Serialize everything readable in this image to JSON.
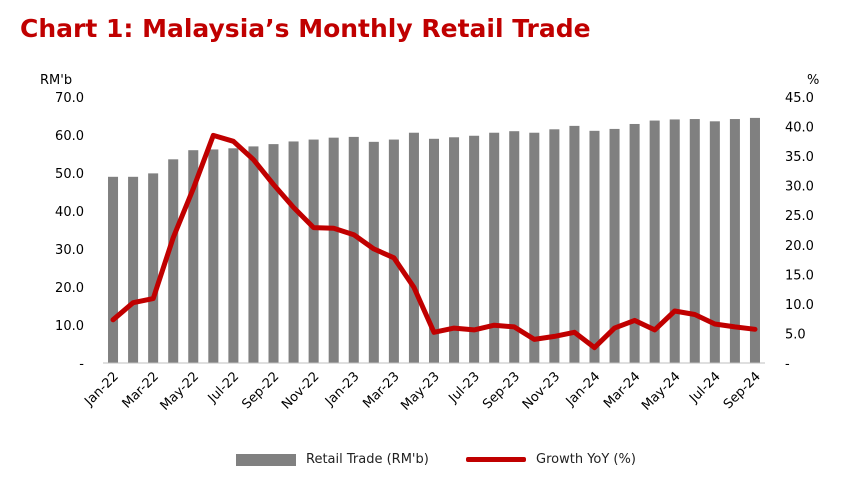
{
  "title": "Chart 1: Malaysia’s Monthly Retail Trade",
  "colors": {
    "title": "#c00000",
    "bars": "#808080",
    "line": "#c00000"
  },
  "chart_data": {
    "type": "bar",
    "title": "Chart 1: Malaysia’s Monthly Retail Trade",
    "left_unit": "RM'b",
    "right_unit": "%",
    "ylim_left": [
      0,
      70
    ],
    "ylim_right": [
      0,
      45
    ],
    "yticks_left": [
      "-",
      "10.0",
      "20.0",
      "30.0",
      "40.0",
      "50.0",
      "60.0",
      "70.0"
    ],
    "yticks_right": [
      "-",
      "5.0",
      "10.0",
      "15.0",
      "20.0",
      "25.0",
      "30.0",
      "35.0",
      "40.0",
      "45.0"
    ],
    "grid": false,
    "legend_position": "bottom",
    "categories": [
      "Jan-22",
      "Feb-22",
      "Mar-22",
      "Apr-22",
      "May-22",
      "Jun-22",
      "Jul-22",
      "Aug-22",
      "Sep-22",
      "Oct-22",
      "Nov-22",
      "Dec-22",
      "Jan-23",
      "Feb-23",
      "Mar-23",
      "Apr-23",
      "May-23",
      "Jun-23",
      "Jul-23",
      "Aug-23",
      "Sep-23",
      "Oct-23",
      "Nov-23",
      "Dec-23",
      "Jan-24",
      "Feb-24",
      "Mar-24",
      "Apr-24",
      "May-24",
      "Jun-24",
      "Jul-24",
      "Aug-24",
      "Sep-24"
    ],
    "x_tick_labels": [
      "Jan-22",
      "Mar-22",
      "May-22",
      "Jul-22",
      "Sep-22",
      "Nov-22",
      "Jan-23",
      "Mar-23",
      "May-23",
      "Jul-23",
      "Sep-23",
      "Nov-23",
      "Jan-24",
      "Mar-24",
      "May-24",
      "Jul-24",
      "Sep-24"
    ],
    "series": [
      {
        "name": "Retail Trade (RM'b)",
        "type": "bar",
        "axis": "left",
        "values": [
          49.0,
          49.0,
          49.9,
          53.6,
          56.0,
          56.2,
          56.5,
          57.0,
          57.6,
          58.3,
          58.8,
          59.3,
          59.5,
          58.2,
          58.8,
          60.6,
          59.0,
          59.4,
          59.8,
          60.6,
          61.0,
          60.6,
          61.5,
          62.4,
          61.1,
          61.6,
          62.9,
          63.8,
          64.1,
          64.2,
          63.6,
          64.2,
          64.5
        ]
      },
      {
        "name": "Growth YoY (%)",
        "type": "line",
        "axis": "right",
        "values": [
          7.3,
          10.2,
          10.9,
          21.2,
          29.5,
          38.5,
          37.5,
          34.4,
          30.2,
          26.3,
          22.9,
          22.8,
          21.7,
          19.3,
          17.8,
          12.8,
          5.2,
          5.9,
          5.6,
          6.4,
          6.1,
          4.0,
          4.5,
          5.2,
          2.6,
          5.9,
          7.2,
          5.6,
          8.8,
          8.2,
          6.6,
          6.1,
          5.7
        ]
      }
    ]
  }
}
